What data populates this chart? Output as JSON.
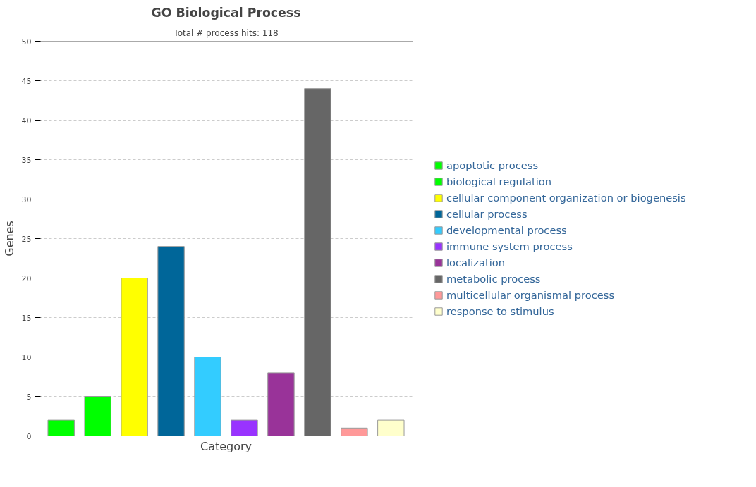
{
  "chart_data": {
    "type": "bar",
    "title": "GO Biological Process",
    "subtitle": "Total # process hits: 118",
    "xlabel": "Category",
    "ylabel": "Genes",
    "categories": [
      null,
      null,
      null,
      null,
      null,
      null,
      null,
      null,
      null,
      null
    ],
    "series": [
      {
        "name": "apoptotic process",
        "color": "#00ff00",
        "values": [
          2,
          null,
          null,
          null,
          null,
          null,
          null,
          null,
          null,
          null
        ]
      },
      {
        "name": "biological regulation",
        "color": "#00ff00",
        "values": [
          null,
          5,
          null,
          null,
          null,
          null,
          null,
          null,
          null,
          null
        ]
      },
      {
        "name": "cellular component organization or biogenesis",
        "color": "#ffff00",
        "values": [
          null,
          null,
          20,
          null,
          null,
          null,
          null,
          null,
          null,
          null
        ]
      },
      {
        "name": "cellular process",
        "color": "#006699",
        "values": [
          null,
          null,
          null,
          24,
          null,
          null,
          null,
          null,
          null,
          null
        ]
      },
      {
        "name": "developmental process",
        "color": "#33ccff",
        "values": [
          null,
          null,
          null,
          null,
          10,
          null,
          null,
          null,
          null,
          null
        ]
      },
      {
        "name": "immune system process",
        "color": "#9933ff",
        "values": [
          null,
          null,
          null,
          null,
          null,
          2,
          null,
          null,
          null,
          null
        ]
      },
      {
        "name": "localization",
        "color": "#993399",
        "values": [
          null,
          null,
          null,
          null,
          null,
          null,
          8,
          null,
          null,
          null
        ]
      },
      {
        "name": "metabolic process",
        "color": "#666666",
        "values": [
          null,
          null,
          null,
          null,
          null,
          null,
          null,
          44,
          null,
          null
        ]
      },
      {
        "name": "multicellular organismal process",
        "color": "#ff9999",
        "values": [
          null,
          null,
          null,
          null,
          null,
          null,
          null,
          null,
          1,
          null
        ]
      },
      {
        "name": "response to stimulus",
        "color": "#ffffcc",
        "values": [
          null,
          null,
          null,
          null,
          null,
          null,
          null,
          null,
          null,
          2
        ]
      }
    ],
    "ylim": [
      0,
      50
    ],
    "yticks": [
      0,
      5,
      10,
      15,
      20,
      25,
      30,
      35,
      40,
      45,
      50
    ],
    "grid": "y",
    "legend": "right",
    "tick_labels": "y"
  }
}
